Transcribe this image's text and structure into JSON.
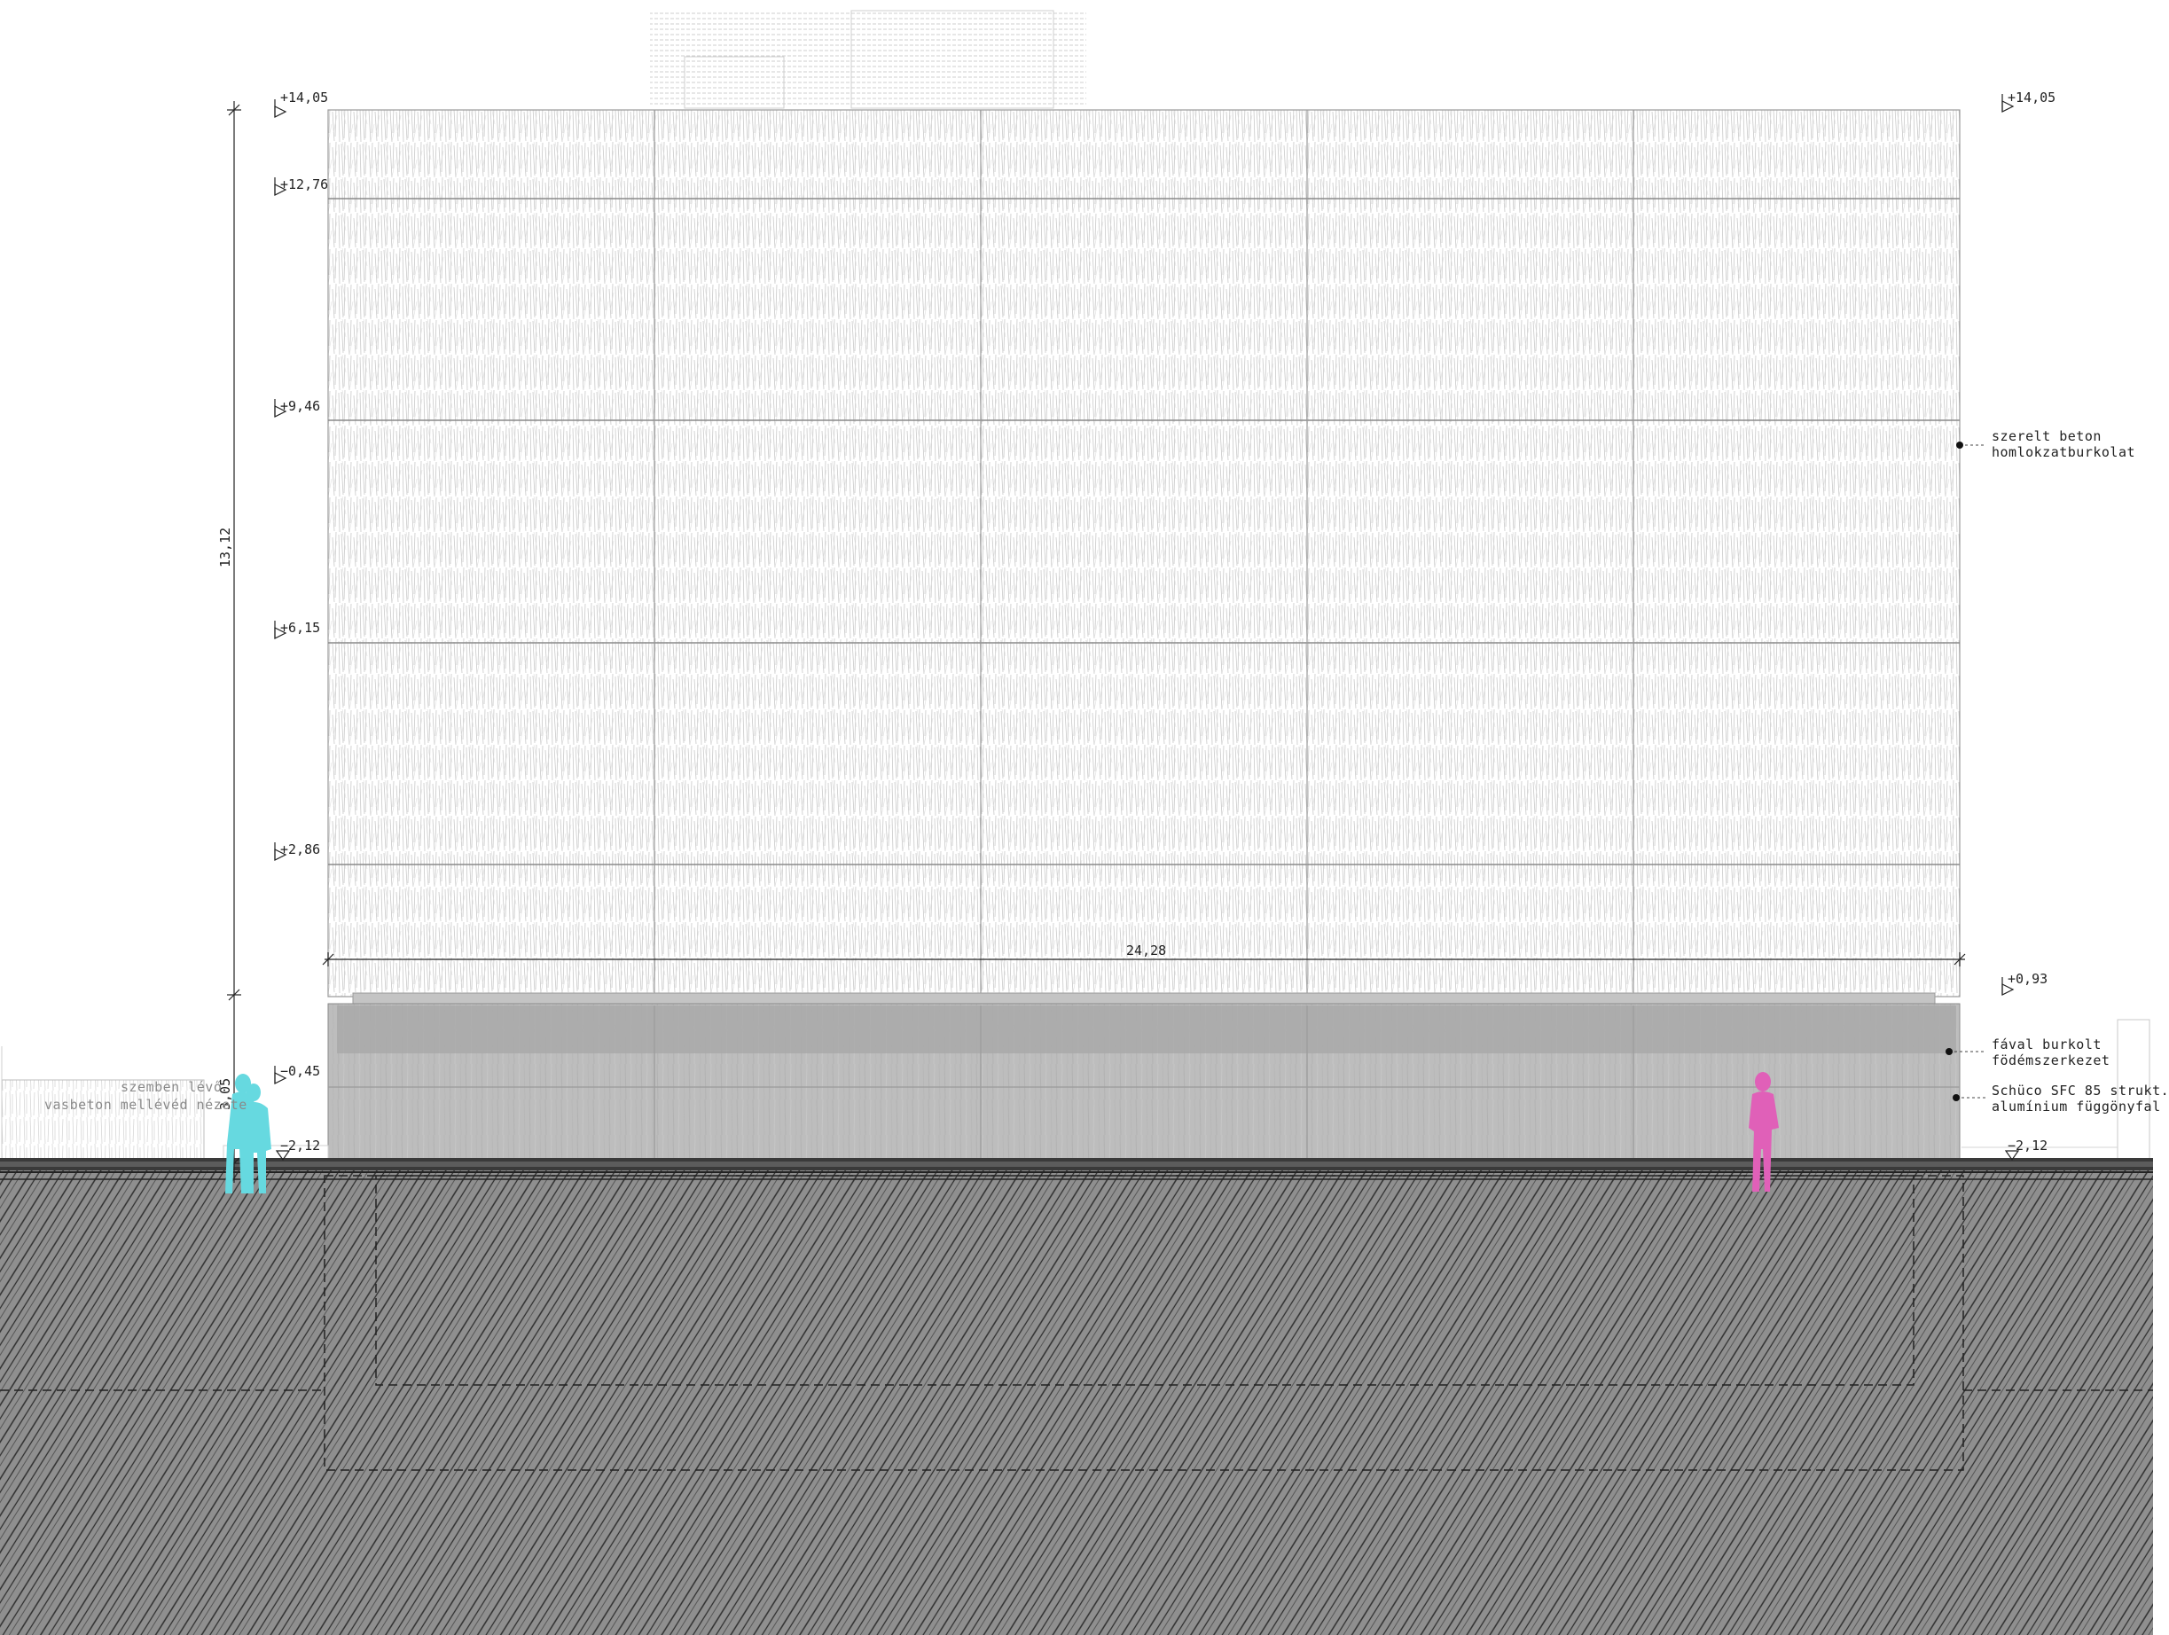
{
  "levels": [
    {
      "key": "l1405",
      "text": "+14,05",
      "side": "left"
    },
    {
      "key": "l1405r",
      "text": "+14,05",
      "side": "right"
    },
    {
      "key": "l1276",
      "text": "+12,76",
      "side": "left"
    },
    {
      "key": "l946",
      "text": "+9,46",
      "side": "left"
    },
    {
      "key": "l615",
      "text": "+6,15",
      "side": "left"
    },
    {
      "key": "l286",
      "text": "+2,86",
      "side": "left"
    },
    {
      "key": "l093",
      "text": "+0,93",
      "side": "right"
    },
    {
      "key": "lm045",
      "text": "−0,45",
      "side": "left"
    },
    {
      "key": "lm212",
      "text": "−2,12",
      "side": "left"
    },
    {
      "key": "lm212r",
      "text": "−2,12",
      "side": "right"
    }
  ],
  "dimensions": {
    "total_height": "13,12",
    "ground_height": "3,05",
    "width": "24,28"
  },
  "annotations": {
    "facade_line1": "szerelt beton",
    "facade_line2": "homlokzatburkolat",
    "slab_line1": "fával burkolt",
    "slab_line2": "födémszerkezet",
    "curtain_line1": "Schüco SFC 85 strukt.",
    "curtain_line2": "alumínium függönyfal",
    "wall_line1": "szemben lévő",
    "wall_line2": "vasbeton mellévéd nézete"
  },
  "colors": {
    "figure_left": "#66d9e0",
    "figure_right": "#e060b8",
    "ground_fill": "#8f8f8f",
    "glass_fill": "#bdbdbd"
  }
}
